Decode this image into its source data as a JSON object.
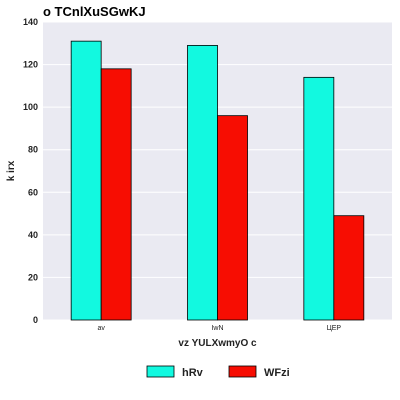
{
  "chart_data": {
    "type": "bar",
    "title": "o TCnlXuSGwKJ",
    "xlabel": "vz YULXwmyO c",
    "ylabel": "k irx",
    "categories": [
      "av",
      "IwN",
      "ЦEP"
    ],
    "series": [
      {
        "name": "hRv",
        "values": [
          131,
          129,
          114
        ],
        "color": "#12f9e0"
      },
      {
        "name": "WFzi",
        "values": [
          118,
          96,
          49
        ],
        "color": "#f70d02"
      }
    ],
    "ylim": [
      0,
      140
    ],
    "yticks": [
      0,
      20,
      40,
      60,
      80,
      100,
      120,
      140
    ],
    "grid": true,
    "legend_position": "bottom-center"
  }
}
